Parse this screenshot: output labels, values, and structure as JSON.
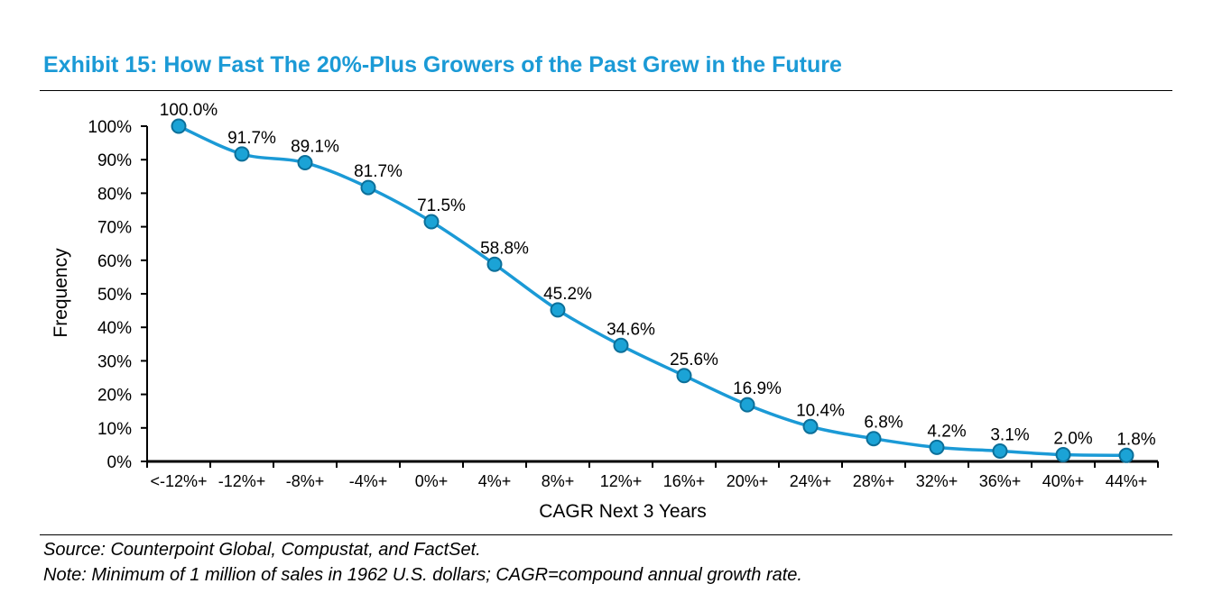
{
  "title": "Exhibit 15: How Fast The 20%-Plus Growers of the Past Grew in the Future",
  "footer": {
    "source": "Source: Counterpoint Global, Compustat, and FactSet.",
    "note": "Note: Minimum of 1 million of sales in 1962 U.S. dollars; CAGR=compound annual growth rate."
  },
  "chart_data": {
    "type": "line",
    "title": "",
    "xlabel": "CAGR Next 3 Years",
    "ylabel": "Frequency",
    "categories": [
      "<-12%+",
      "-12%+",
      "-8%+",
      "-4%+",
      "0%+",
      "4%+",
      "8%+",
      "12%+",
      "16%+",
      "20%+",
      "24%+",
      "28%+",
      "32%+",
      "36%+",
      "40%+",
      "44%+"
    ],
    "values": [
      100.0,
      91.7,
      89.1,
      81.7,
      71.5,
      58.8,
      45.2,
      34.6,
      25.6,
      16.9,
      10.4,
      6.8,
      4.2,
      3.1,
      2.0,
      1.8
    ],
    "data_labels": [
      "100.0%",
      "91.7%",
      "89.1%",
      "81.7%",
      "71.5%",
      "58.8%",
      "45.2%",
      "34.6%",
      "25.6%",
      "16.9%",
      "10.4%",
      "6.8%",
      "4.2%",
      "3.1%",
      "2.0%",
      "1.8%"
    ],
    "ylim": [
      0,
      100
    ],
    "yticks": [
      0,
      10,
      20,
      30,
      40,
      50,
      60,
      70,
      80,
      90,
      100
    ],
    "ytick_labels": [
      "0%",
      "10%",
      "20%",
      "30%",
      "40%",
      "50%",
      "60%",
      "70%",
      "80%",
      "90%",
      "100%"
    ],
    "grid": false,
    "legend": false,
    "line_color": "#1b9ad6",
    "marker_color": "#1ba3d6"
  }
}
